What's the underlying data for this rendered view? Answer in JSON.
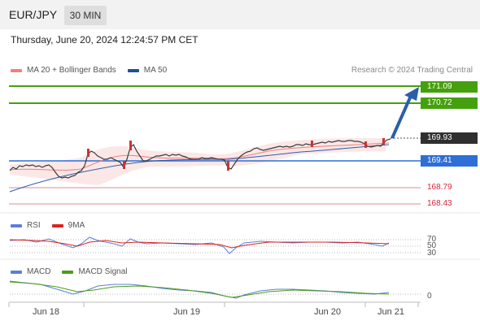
{
  "header": {
    "symbol": "EUR/JPY",
    "timeframe": "30 MIN",
    "datetime": "Thursday, June 20, 2024 12:24:57 PM CET"
  },
  "legend_main": {
    "items": [
      {
        "label": "MA 20 + Bollinger Bands",
        "color": "#f08080"
      },
      {
        "label": "MA 50",
        "color": "#1f4e9c"
      }
    ],
    "credit": "Research © 2024 Trading Central"
  },
  "levels": {
    "resistance_2": "171.09",
    "resistance_1": "170.72",
    "current": "169.93",
    "pivot": "169.41",
    "support_1": "168.79",
    "support_2": "168.43"
  },
  "rsi_panel": {
    "items": [
      {
        "label": "RSI",
        "color": "#5b7fd6"
      },
      {
        "label": "9MA",
        "color": "#e02020"
      }
    ],
    "levels": [
      "70",
      "50",
      "30"
    ]
  },
  "macd_panel": {
    "items": [
      {
        "label": "MACD",
        "color": "#5b7fd6"
      },
      {
        "label": "MACD Signal",
        "color": "#4a9e18"
      }
    ],
    "zero_label": "0"
  },
  "xaxis": {
    "labels": [
      "Jun 18",
      "Jun 19",
      "Jun 20",
      "Jun 21"
    ]
  },
  "colors": {
    "resistance": "#45a00d",
    "pivot": "#2e6ed6",
    "support": "#d9253a",
    "arrow": "#2a5fa8",
    "bollinger_fill": "#fbe3e3"
  }
}
